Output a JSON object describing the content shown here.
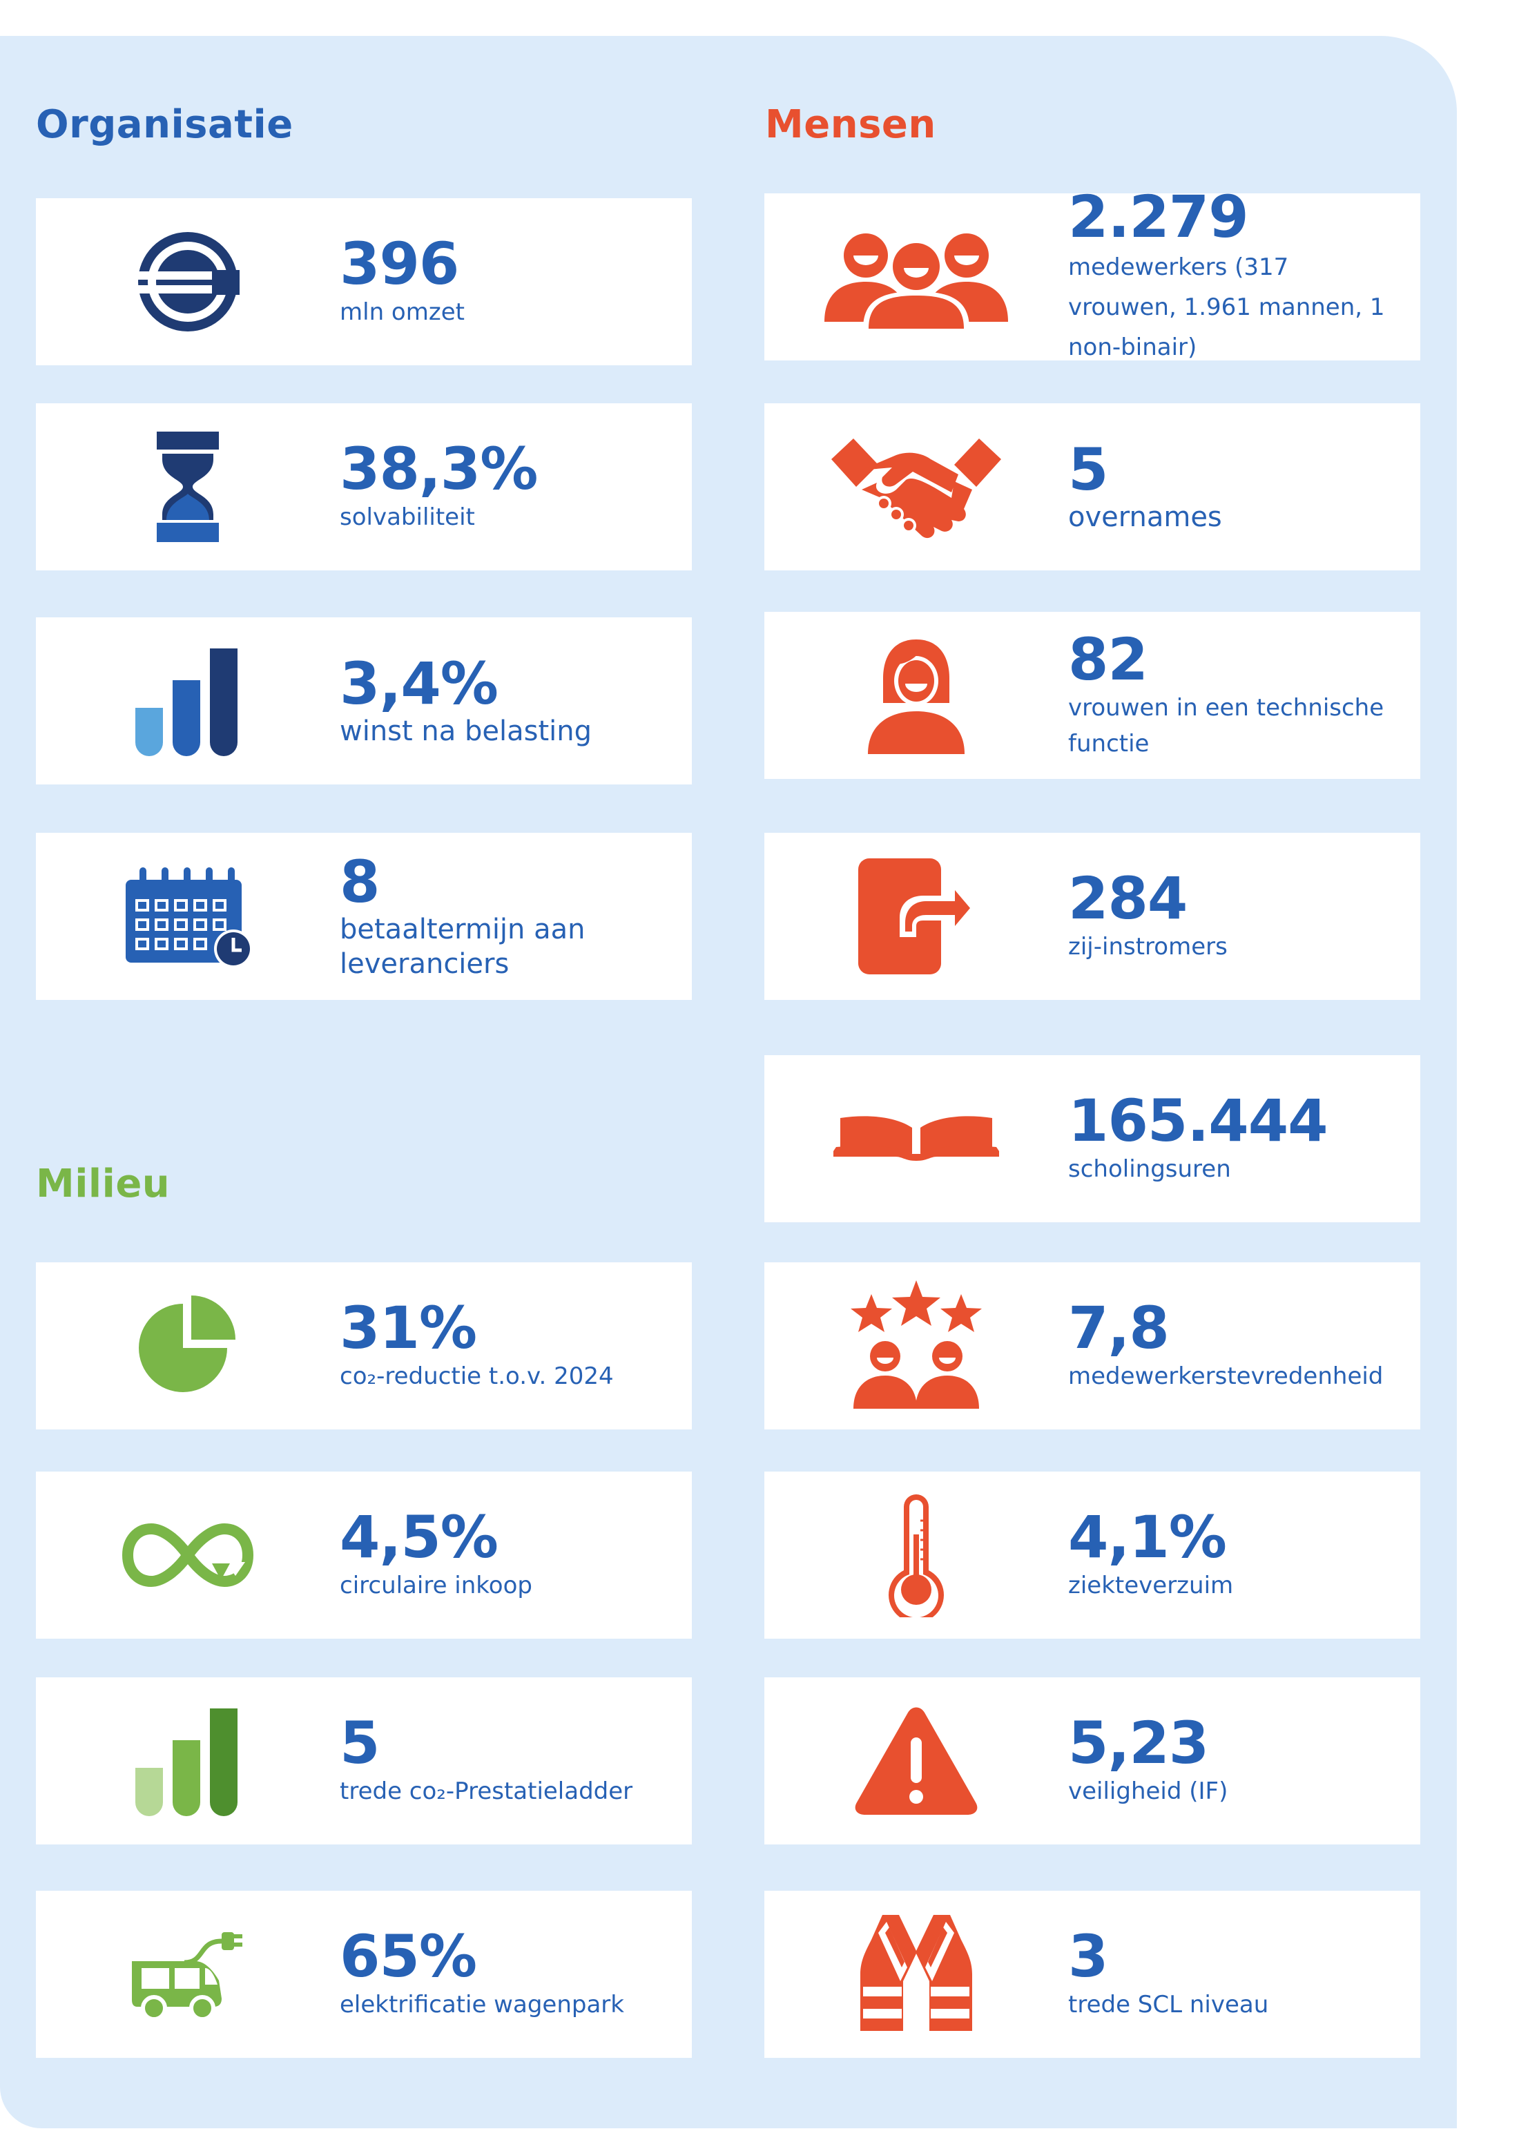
{
  "colors": {
    "panel_bg": "#dcebfa",
    "value_blue": "#2761b4",
    "organisatie": "#2761b4",
    "mensen": "#e8502f",
    "milieu": "#7ab648"
  },
  "organisatie": {
    "heading": "Organisatie",
    "cards": [
      {
        "icon": "euro-coin-icon",
        "value": "396",
        "label": "mln omzet"
      },
      {
        "icon": "hourglass-icon",
        "value": "38,3%",
        "label": "solvabiliteit"
      },
      {
        "icon": "bar-chart-icon",
        "value": "3,4%",
        "label": "winst na belasting"
      },
      {
        "icon": "calendar-clock-icon",
        "value": "8",
        "label": "betaaltermijn aan leveranciers"
      }
    ]
  },
  "milieu": {
    "heading": "Milieu",
    "cards": [
      {
        "icon": "pie-chart-icon",
        "value": "31%",
        "label": "co₂-reductie t.o.v. 2024"
      },
      {
        "icon": "infinity-recycle-icon",
        "value": "4,5%",
        "label": "circulaire inkoop"
      },
      {
        "icon": "ladder-bars-icon",
        "value": "5",
        "label": "trede co₂-Prestatieladder"
      },
      {
        "icon": "electric-van-icon",
        "value": "65%",
        "label": "elektrificatie wagenpark"
      }
    ]
  },
  "mensen": {
    "heading": "Mensen",
    "cards": [
      {
        "icon": "group-people-icon",
        "value": "2.279",
        "label": "medewerkers (317 vrouwen, 1.961 mannen, 1 non-binair)"
      },
      {
        "icon": "handshake-icon",
        "value": "5",
        "label": "overnames"
      },
      {
        "icon": "woman-icon",
        "value": "82",
        "label": "vrouwen in een technische functie"
      },
      {
        "icon": "door-exit-icon",
        "value": "284",
        "label": "zij-instromers"
      },
      {
        "icon": "open-book-icon",
        "value": "165.444",
        "label": "scholingsuren"
      },
      {
        "icon": "stars-people-icon",
        "value": "7,8",
        "label": "medewerkerstevredenheid"
      },
      {
        "icon": "thermometer-icon",
        "value": "4,1%",
        "label": "ziekteverzuim"
      },
      {
        "icon": "warning-icon",
        "value": "5,23",
        "label": "veiligheid (IF)"
      },
      {
        "icon": "safety-vest-icon",
        "value": "3",
        "label": "trede SCL niveau"
      }
    ]
  }
}
